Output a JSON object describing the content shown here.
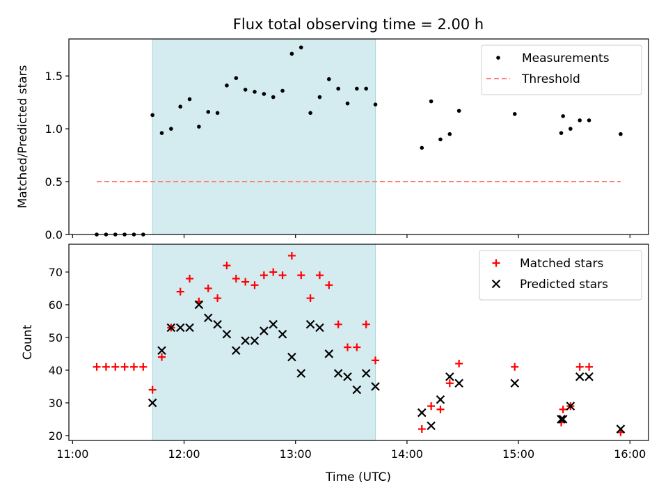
{
  "title": "Flux total observing time = 2.00 h",
  "xlabel": "Time (UTC)",
  "xticks": [
    "11:00",
    "12:00",
    "13:00",
    "14:00",
    "15:00",
    "16:00"
  ],
  "chart_data": [
    {
      "type": "scatter",
      "ylabel": "Matched/Predicted stars",
      "xlim": [
        "10:58",
        "16:10"
      ],
      "ylim": [
        0,
        1.85
      ],
      "yticks": [
        "0.0",
        "0.5",
        "1.0",
        "1.5"
      ],
      "shaded_region": {
        "x0": "11:43",
        "x1": "13:43",
        "color": "#d4ebf0"
      },
      "legend": {
        "placement": "top-right",
        "entries": [
          "Measurements",
          "Threshold"
        ]
      },
      "series": [
        {
          "name": "Measurements",
          "color": "#000000",
          "marker": "dot",
          "x": [
            "11:13",
            "11:18",
            "11:23",
            "11:28",
            "11:33",
            "11:38",
            "11:43",
            "11:48",
            "11:53",
            "11:58",
            "12:03",
            "12:08",
            "12:13",
            "12:18",
            "12:23",
            "12:28",
            "12:33",
            "12:38",
            "12:43",
            "12:48",
            "12:53",
            "12:58",
            "13:03",
            "13:08",
            "13:13",
            "13:18",
            "13:23",
            "13:28",
            "13:33",
            "13:38",
            "13:43",
            "14:08",
            "14:13",
            "14:18",
            "14:23",
            "14:28",
            "14:58",
            "15:23",
            "15:24",
            "15:28",
            "15:33",
            "15:38",
            "15:55"
          ],
          "y": [
            0,
            0,
            0,
            0,
            0,
            0,
            1.13,
            0.96,
            1.0,
            1.21,
            1.28,
            1.02,
            1.16,
            1.15,
            1.41,
            1.48,
            1.37,
            1.35,
            1.33,
            1.3,
            1.36,
            1.71,
            1.77,
            1.15,
            1.3,
            1.47,
            1.38,
            1.24,
            1.38,
            1.38,
            1.23,
            0.82,
            1.26,
            0.9,
            0.95,
            1.17,
            1.14,
            0.96,
            1.12,
            1.0,
            1.08,
            1.08,
            0.95
          ]
        },
        {
          "name": "Threshold",
          "color": "#ff7f7f",
          "marker": "dashed-line",
          "x": [
            "11:13",
            "15:55"
          ],
          "y": [
            0.5,
            0.5
          ]
        }
      ]
    },
    {
      "type": "scatter",
      "ylabel": "Count",
      "xlim": [
        "10:58",
        "16:10"
      ],
      "ylim": [
        18.5,
        78.5
      ],
      "yticks": [
        "20",
        "30",
        "40",
        "50",
        "60",
        "70"
      ],
      "shaded_region": {
        "x0": "11:43",
        "x1": "13:43",
        "color": "#d4ebf0"
      },
      "legend": {
        "placement": "top-right",
        "entries": [
          "Matched stars",
          "Predicted stars"
        ]
      },
      "series": [
        {
          "name": "Matched stars",
          "color": "#ff0000",
          "marker": "plus",
          "x": [
            "11:13",
            "11:18",
            "11:23",
            "11:28",
            "11:33",
            "11:38",
            "11:43",
            "11:48",
            "11:53",
            "11:58",
            "12:03",
            "12:08",
            "12:13",
            "12:18",
            "12:23",
            "12:28",
            "12:33",
            "12:38",
            "12:43",
            "12:48",
            "12:53",
            "12:58",
            "13:03",
            "13:08",
            "13:13",
            "13:18",
            "13:23",
            "13:28",
            "13:33",
            "13:38",
            "13:43",
            "14:08",
            "14:13",
            "14:18",
            "14:23",
            "14:28",
            "14:58",
            "15:23",
            "15:24",
            "15:28",
            "15:33",
            "15:38",
            "15:55"
          ],
          "y": [
            41,
            41,
            41,
            41,
            41,
            41,
            34,
            44,
            53,
            64,
            68,
            61,
            65,
            62,
            72,
            68,
            67,
            66,
            69,
            70,
            69,
            75,
            69,
            62,
            69,
            66,
            54,
            47,
            47,
            54,
            43,
            22,
            29,
            28,
            36,
            42,
            41,
            24,
            28,
            29,
            41,
            41,
            21
          ]
        },
        {
          "name": "Predicted stars",
          "color": "#000000",
          "marker": "x",
          "x": [
            "11:43",
            "11:48",
            "11:53",
            "11:58",
            "12:03",
            "12:08",
            "12:13",
            "12:18",
            "12:23",
            "12:28",
            "12:33",
            "12:38",
            "12:43",
            "12:48",
            "12:53",
            "12:58",
            "13:03",
            "13:08",
            "13:13",
            "13:18",
            "13:23",
            "13:28",
            "13:33",
            "13:38",
            "13:43",
            "14:08",
            "14:13",
            "14:18",
            "14:23",
            "14:28",
            "14:58",
            "15:23",
            "15:24",
            "15:28",
            "15:33",
            "15:38",
            "15:55"
          ],
          "y": [
            30,
            46,
            53,
            53,
            53,
            60,
            56,
            54,
            51,
            46,
            49,
            49,
            52,
            54,
            51,
            44,
            39,
            54,
            53,
            45,
            39,
            38,
            34,
            39,
            35,
            27,
            23,
            31,
            38,
            36,
            36,
            25,
            25,
            29,
            38,
            38,
            22
          ]
        }
      ]
    }
  ]
}
